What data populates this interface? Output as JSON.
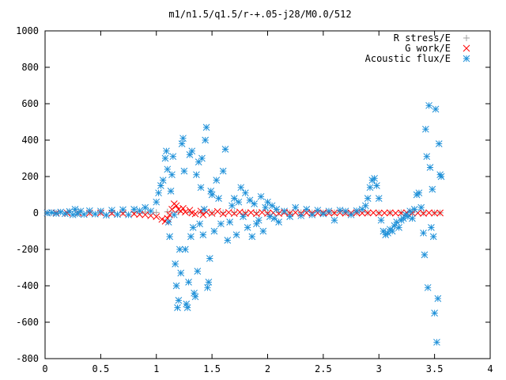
{
  "chart_data": {
    "type": "scatter",
    "title": "m1/n1.5/q1.5/r-+.05-j28/M0.0/512",
    "xlabel": "",
    "ylabel": "",
    "xlim": [
      0,
      4
    ],
    "ylim": [
      -800,
      1000
    ],
    "xticks": [
      0,
      0.5,
      1,
      1.5,
      2,
      2.5,
      3,
      3.5,
      4
    ],
    "xtick_labels": [
      "0",
      "0.5",
      "1",
      "1.5",
      "2",
      "2.5",
      "3",
      "3.5",
      "4"
    ],
    "yticks": [
      -800,
      -600,
      -400,
      -200,
      0,
      200,
      400,
      600,
      800,
      1000
    ],
    "ytick_labels": [
      "-800",
      "-600",
      "-400",
      "-200",
      "0",
      "200",
      "400",
      "600",
      "800",
      "1000"
    ],
    "grid": false,
    "legend_position": "top-right",
    "series": [
      {
        "name": "R stress/E",
        "marker": "plus",
        "color": "#a0a0a0",
        "points": [
          [
            0.02,
            0
          ],
          [
            0.1,
            0
          ],
          [
            0.2,
            1
          ],
          [
            0.3,
            2
          ],
          [
            0.4,
            1
          ],
          [
            0.5,
            2
          ],
          [
            0.6,
            3
          ],
          [
            0.7,
            2
          ],
          [
            0.8,
            4
          ],
          [
            0.9,
            5
          ],
          [
            1.0,
            3
          ],
          [
            1.1,
            6
          ],
          [
            1.2,
            4
          ],
          [
            1.3,
            2
          ],
          [
            1.4,
            3
          ],
          [
            1.5,
            1
          ],
          [
            1.6,
            2
          ],
          [
            1.7,
            3
          ],
          [
            1.8,
            1
          ],
          [
            1.9,
            2
          ],
          [
            2.0,
            1
          ],
          [
            2.1,
            2
          ],
          [
            2.2,
            1
          ],
          [
            2.3,
            2
          ],
          [
            2.4,
            1
          ],
          [
            2.5,
            1
          ],
          [
            2.6,
            2
          ],
          [
            2.7,
            1
          ],
          [
            2.8,
            2
          ],
          [
            2.9,
            1
          ],
          [
            3.0,
            1
          ],
          [
            3.1,
            1
          ],
          [
            3.2,
            2
          ],
          [
            3.3,
            1
          ],
          [
            3.4,
            1
          ],
          [
            3.5,
            1
          ],
          [
            3.55,
            1
          ]
        ]
      },
      {
        "name": "G work/E",
        "marker": "cross",
        "color": "#ff0000",
        "points": [
          [
            0.02,
            0
          ],
          [
            0.1,
            0
          ],
          [
            0.2,
            -1
          ],
          [
            0.3,
            0
          ],
          [
            0.4,
            -1
          ],
          [
            0.5,
            0
          ],
          [
            0.6,
            -2
          ],
          [
            0.7,
            -3
          ],
          [
            0.8,
            -5
          ],
          [
            0.85,
            -8
          ],
          [
            0.9,
            -10
          ],
          [
            0.95,
            -15
          ],
          [
            1.0,
            -20
          ],
          [
            1.05,
            -35
          ],
          [
            1.08,
            -45
          ],
          [
            1.1,
            -30
          ],
          [
            1.12,
            -10
          ],
          [
            1.14,
            20
          ],
          [
            1.16,
            50
          ],
          [
            1.18,
            40
          ],
          [
            1.2,
            20
          ],
          [
            1.22,
            10
          ],
          [
            1.24,
            25
          ],
          [
            1.26,
            5
          ],
          [
            1.3,
            15
          ],
          [
            1.32,
            0
          ],
          [
            1.35,
            -5
          ],
          [
            1.4,
            10
          ],
          [
            1.42,
            -10
          ],
          [
            1.45,
            5
          ],
          [
            1.5,
            -2
          ],
          [
            1.55,
            8
          ],
          [
            1.6,
            -5
          ],
          [
            1.65,
            3
          ],
          [
            1.7,
            -3
          ],
          [
            1.75,
            5
          ],
          [
            1.8,
            -2
          ],
          [
            1.85,
            2
          ],
          [
            1.9,
            -4
          ],
          [
            1.95,
            3
          ],
          [
            2.0,
            -2
          ],
          [
            2.05,
            1
          ],
          [
            2.1,
            -3
          ],
          [
            2.15,
            2
          ],
          [
            2.2,
            -1
          ],
          [
            2.25,
            2
          ],
          [
            2.3,
            -2
          ],
          [
            2.35,
            1
          ],
          [
            2.4,
            -1
          ],
          [
            2.45,
            0
          ],
          [
            2.5,
            1
          ],
          [
            2.55,
            -1
          ],
          [
            2.6,
            0
          ],
          [
            2.65,
            1
          ],
          [
            2.7,
            -1
          ],
          [
            2.75,
            0
          ],
          [
            2.8,
            1
          ],
          [
            2.85,
            -1
          ],
          [
            2.9,
            0
          ],
          [
            2.95,
            1
          ],
          [
            3.0,
            -1
          ],
          [
            3.05,
            0
          ],
          [
            3.1,
            1
          ],
          [
            3.15,
            -1
          ],
          [
            3.2,
            0
          ],
          [
            3.25,
            1
          ],
          [
            3.3,
            -1
          ],
          [
            3.35,
            0
          ],
          [
            3.4,
            -2
          ],
          [
            3.45,
            1
          ],
          [
            3.5,
            -1
          ],
          [
            3.55,
            0
          ]
        ]
      },
      {
        "name": "Acoustic flux/E",
        "marker": "star",
        "color": "#1e90d8",
        "points": [
          [
            0.02,
            0
          ],
          [
            0.06,
            2
          ],
          [
            0.1,
            -3
          ],
          [
            0.14,
            5
          ],
          [
            0.18,
            -4
          ],
          [
            0.22,
            8
          ],
          [
            0.25,
            -10
          ],
          [
            0.27,
            20
          ],
          [
            0.29,
            -5
          ],
          [
            0.32,
            10
          ],
          [
            0.35,
            -8
          ],
          [
            0.4,
            12
          ],
          [
            0.45,
            -6
          ],
          [
            0.5,
            10
          ],
          [
            0.55,
            -12
          ],
          [
            0.6,
            15
          ],
          [
            0.65,
            -8
          ],
          [
            0.7,
            18
          ],
          [
            0.75,
            -10
          ],
          [
            0.8,
            20
          ],
          [
            0.85,
            12
          ],
          [
            0.9,
            30
          ],
          [
            0.95,
            10
          ],
          [
            1.0,
            60
          ],
          [
            1.02,
            110
          ],
          [
            1.04,
            150
          ],
          [
            1.06,
            180
          ],
          [
            1.08,
            300
          ],
          [
            1.09,
            340
          ],
          [
            1.1,
            240
          ],
          [
            1.11,
            -50
          ],
          [
            1.12,
            -130
          ],
          [
            1.13,
            120
          ],
          [
            1.14,
            210
          ],
          [
            1.15,
            310
          ],
          [
            1.16,
            -10
          ],
          [
            1.17,
            -280
          ],
          [
            1.18,
            -400
          ],
          [
            1.19,
            -520
          ],
          [
            1.2,
            -480
          ],
          [
            1.21,
            -200
          ],
          [
            1.22,
            -330
          ],
          [
            1.23,
            380
          ],
          [
            1.24,
            410
          ],
          [
            1.25,
            230
          ],
          [
            1.26,
            -200
          ],
          [
            1.27,
            -500
          ],
          [
            1.28,
            -520
          ],
          [
            1.29,
            -380
          ],
          [
            1.3,
            320
          ],
          [
            1.31,
            -130
          ],
          [
            1.32,
            340
          ],
          [
            1.33,
            -80
          ],
          [
            1.34,
            -440
          ],
          [
            1.35,
            -460
          ],
          [
            1.36,
            210
          ],
          [
            1.37,
            -320
          ],
          [
            1.38,
            280
          ],
          [
            1.39,
            -60
          ],
          [
            1.4,
            140
          ],
          [
            1.41,
            300
          ],
          [
            1.42,
            -120
          ],
          [
            1.43,
            20
          ],
          [
            1.44,
            400
          ],
          [
            1.45,
            470
          ],
          [
            1.46,
            -410
          ],
          [
            1.47,
            -380
          ],
          [
            1.48,
            -250
          ],
          [
            1.49,
            120
          ],
          [
            1.5,
            100
          ],
          [
            1.52,
            -100
          ],
          [
            1.54,
            180
          ],
          [
            1.56,
            80
          ],
          [
            1.58,
            -60
          ],
          [
            1.6,
            230
          ],
          [
            1.62,
            350
          ],
          [
            1.64,
            -150
          ],
          [
            1.66,
            -50
          ],
          [
            1.68,
            40
          ],
          [
            1.7,
            80
          ],
          [
            1.72,
            -120
          ],
          [
            1.74,
            60
          ],
          [
            1.76,
            140
          ],
          [
            1.78,
            -20
          ],
          [
            1.8,
            110
          ],
          [
            1.82,
            -80
          ],
          [
            1.84,
            70
          ],
          [
            1.86,
            -130
          ],
          [
            1.88,
            50
          ],
          [
            1.9,
            -60
          ],
          [
            1.92,
            -40
          ],
          [
            1.94,
            90
          ],
          [
            1.96,
            -100
          ],
          [
            1.98,
            30
          ],
          [
            2.0,
            60
          ],
          [
            2.02,
            -20
          ],
          [
            2.04,
            40
          ],
          [
            2.06,
            -30
          ],
          [
            2.08,
            20
          ],
          [
            2.1,
            -50
          ],
          [
            2.15,
            10
          ],
          [
            2.2,
            -20
          ],
          [
            2.25,
            30
          ],
          [
            2.3,
            -15
          ],
          [
            2.35,
            20
          ],
          [
            2.4,
            -10
          ],
          [
            2.45,
            15
          ],
          [
            2.5,
            -5
          ],
          [
            2.55,
            10
          ],
          [
            2.6,
            -40
          ],
          [
            2.65,
            15
          ],
          [
            2.7,
            10
          ],
          [
            2.75,
            -10
          ],
          [
            2.8,
            12
          ],
          [
            2.85,
            20
          ],
          [
            2.88,
            40
          ],
          [
            2.9,
            80
          ],
          [
            2.92,
            140
          ],
          [
            2.94,
            180
          ],
          [
            2.96,
            190
          ],
          [
            2.98,
            150
          ],
          [
            3.0,
            80
          ],
          [
            3.02,
            -40
          ],
          [
            3.04,
            -100
          ],
          [
            3.06,
            -120
          ],
          [
            3.08,
            -110
          ],
          [
            3.1,
            -90
          ],
          [
            3.12,
            -100
          ],
          [
            3.14,
            -70
          ],
          [
            3.16,
            -50
          ],
          [
            3.18,
            -80
          ],
          [
            3.2,
            -40
          ],
          [
            3.22,
            -30
          ],
          [
            3.24,
            -10
          ],
          [
            3.26,
            -20
          ],
          [
            3.28,
            10
          ],
          [
            3.3,
            -30
          ],
          [
            3.32,
            20
          ],
          [
            3.34,
            100
          ],
          [
            3.36,
            110
          ],
          [
            3.38,
            30
          ],
          [
            3.4,
            -110
          ],
          [
            3.41,
            -230
          ],
          [
            3.42,
            460
          ],
          [
            3.43,
            310
          ],
          [
            3.44,
            -410
          ],
          [
            3.45,
            590
          ],
          [
            3.46,
            250
          ],
          [
            3.47,
            -80
          ],
          [
            3.48,
            130
          ],
          [
            3.49,
            -130
          ],
          [
            3.5,
            -550
          ],
          [
            3.51,
            570
          ],
          [
            3.52,
            -710
          ],
          [
            3.53,
            -470
          ],
          [
            3.54,
            380
          ],
          [
            3.55,
            210
          ],
          [
            3.56,
            200
          ]
        ]
      }
    ]
  }
}
